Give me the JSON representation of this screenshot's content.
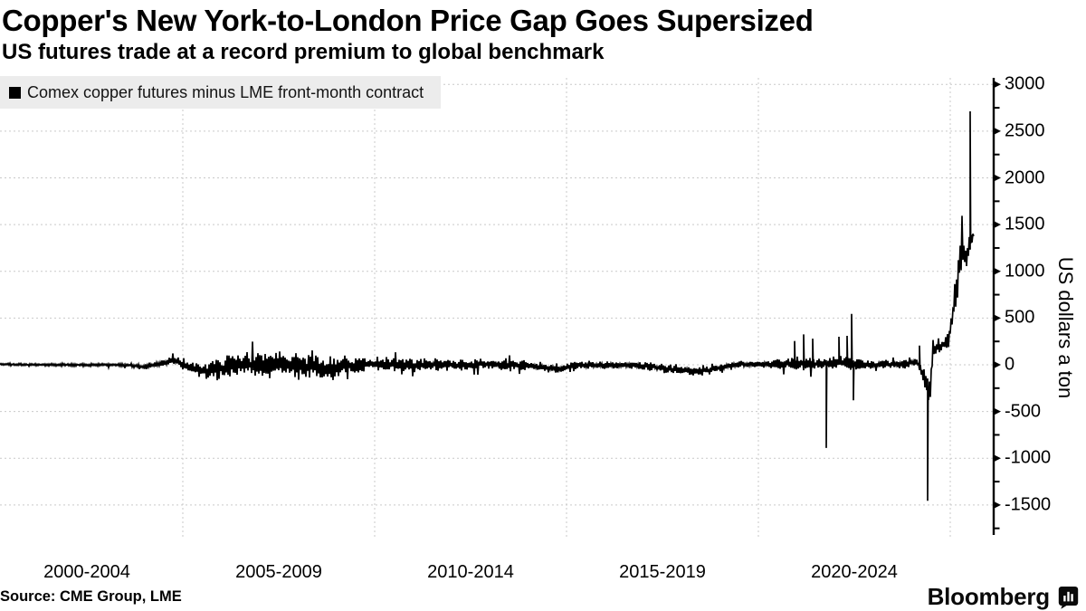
{
  "header": {
    "title": "Copper's New York-to-London Price Gap Goes Supersized",
    "subtitle": "US futures trade at a record premium to global benchmark"
  },
  "legend": {
    "marker": "black-square",
    "label": "Comex copper futures minus LME front-month contract"
  },
  "source": {
    "text": "Source: CME Group, LME"
  },
  "branding": {
    "logo_text": "Bloomberg",
    "logo_icon": "bloomberg-chart-bubble-icon"
  },
  "chart_data": {
    "type": "line",
    "title": "Copper's New York-to-London Price Gap Goes Supersized",
    "subtitle": "US futures trade at a record premium to global benchmark",
    "series": [
      {
        "name": "Comex copper futures minus LME front-month contract",
        "color": "#000000"
      }
    ],
    "ylabel": "US dollars a ton",
    "axis_side": "right",
    "grid": "dashed",
    "ylim": [
      -1815,
      3050
    ],
    "x_range_years": [
      2000.24,
      2025.62
    ],
    "y_ticks": [
      3000,
      2500,
      2000,
      1500,
      1000,
      500,
      0,
      -500,
      -1000,
      -1500
    ],
    "y_minor_ticks": [
      2750,
      2250,
      1750,
      1250,
      750,
      250,
      -250,
      -750,
      -1250,
      -1750
    ],
    "x_tick_labels": [
      "2000-2004",
      "2005-2009",
      "2010-2014",
      "2015-2019",
      "2020-2024"
    ],
    "x_tick_center_years": [
      2002.5,
      2007.5,
      2012.5,
      2017.5,
      2022.5
    ],
    "x_gridline_years": [
      2005,
      2010,
      2015,
      2020,
      2025
    ],
    "envelope_keypoints": [
      [
        2000.3,
        5,
        14
      ],
      [
        2001.0,
        0,
        14
      ],
      [
        2002.0,
        0,
        16
      ],
      [
        2003.0,
        0,
        18
      ],
      [
        2003.6,
        -5,
        22
      ],
      [
        2004.0,
        -25,
        30
      ],
      [
        2004.4,
        10,
        35
      ],
      [
        2004.75,
        45,
        55
      ],
      [
        2005.0,
        10,
        70
      ],
      [
        2005.3,
        -50,
        90
      ],
      [
        2005.7,
        -60,
        120
      ],
      [
        2006.1,
        -30,
        150
      ],
      [
        2006.6,
        0,
        165
      ],
      [
        2007.3,
        15,
        170
      ],
      [
        2008.0,
        -15,
        150
      ],
      [
        2008.8,
        -40,
        155
      ],
      [
        2009.5,
        -5,
        125
      ],
      [
        2010.0,
        10,
        100
      ],
      [
        2011.0,
        0,
        90
      ],
      [
        2012.0,
        0,
        80
      ],
      [
        2013.0,
        5,
        70
      ],
      [
        2014.0,
        -5,
        70
      ],
      [
        2014.8,
        -45,
        70
      ],
      [
        2015.4,
        -5,
        55
      ],
      [
        2016.0,
        -5,
        50
      ],
      [
        2017.0,
        -10,
        48
      ],
      [
        2017.9,
        -55,
        60
      ],
      [
        2018.5,
        -70,
        60
      ],
      [
        2019.1,
        -25,
        50
      ],
      [
        2019.6,
        5,
        50
      ],
      [
        2020.3,
        5,
        60
      ],
      [
        2021.0,
        15,
        85
      ],
      [
        2021.5,
        5,
        80
      ],
      [
        2022.0,
        20,
        80
      ],
      [
        2022.45,
        25,
        95
      ],
      [
        2022.8,
        0,
        70
      ],
      [
        2023.3,
        5,
        60
      ],
      [
        2023.8,
        10,
        55
      ],
      [
        2024.15,
        30,
        70
      ],
      [
        2024.38,
        -220,
        190
      ],
      [
        2024.47,
        -350,
        240
      ],
      [
        2024.55,
        160,
        130
      ],
      [
        2024.75,
        200,
        90
      ],
      [
        2024.95,
        250,
        90
      ],
      [
        2025.05,
        480,
        150
      ],
      [
        2025.15,
        800,
        240
      ],
      [
        2025.3,
        1230,
        340
      ],
      [
        2025.42,
        1080,
        130
      ],
      [
        2025.5,
        1280,
        140
      ],
      [
        2025.62,
        1390,
        45
      ]
    ],
    "spike_events": [
      [
        2020.95,
        255
      ],
      [
        2021.18,
        325
      ],
      [
        2021.42,
        280
      ],
      [
        2021.78,
        -890
      ],
      [
        2022.1,
        300
      ],
      [
        2022.3,
        310
      ],
      [
        2022.42,
        545
      ],
      [
        2022.48,
        -380
      ],
      [
        2024.2,
        205
      ],
      [
        2024.42,
        -1456
      ],
      [
        2025.53,
        2712
      ]
    ]
  }
}
